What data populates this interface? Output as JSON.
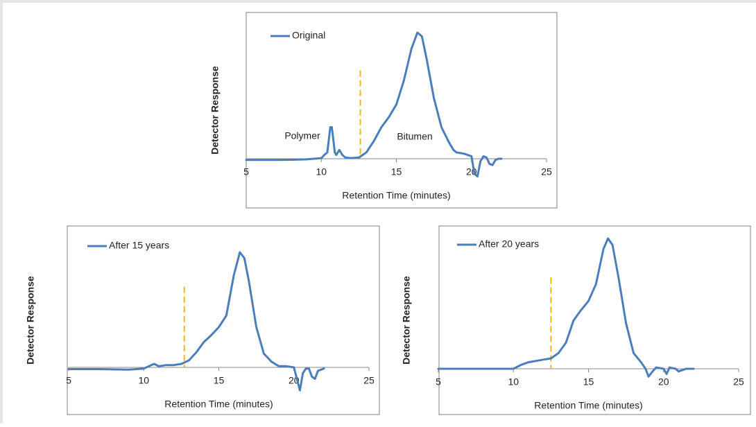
{
  "chart_data": [
    {
      "type": "line",
      "legend": "upper left",
      "xlabel": "Retention Time (minutes)",
      "ylabel": "Detector Response",
      "xlim": [
        5,
        25
      ],
      "xticks": [
        5,
        10,
        15,
        20,
        25
      ],
      "ylim": [
        -15,
        100
      ],
      "annotations": [
        "Polymer",
        "Bitumen"
      ],
      "cutoff_x": 12.6,
      "cutoff_color": "#f5b800",
      "x": [
        5,
        6,
        7,
        8,
        9,
        9.5,
        10,
        10.2,
        10.4,
        10.6,
        10.7,
        10.8,
        10.9,
        11,
        11.2,
        11.4,
        11.6,
        12,
        12.5,
        13,
        13.5,
        14,
        14.5,
        15,
        15.5,
        16,
        16.4,
        16.7,
        17,
        17.5,
        18,
        18.5,
        18.8,
        19,
        19.5,
        20,
        20.2,
        20.4,
        20.6,
        20.8,
        21,
        21.2,
        21.4,
        21.6,
        21.8,
        22
      ],
      "series": [
        {
          "name": "Original",
          "color": "#4a7ebb",
          "values": [
            -1,
            -1,
            -1,
            -0.8,
            -0.5,
            0,
            0.5,
            3,
            5,
            25,
            25,
            15,
            5,
            3,
            7,
            3,
            1,
            0.5,
            1,
            5,
            14,
            25,
            33,
            43,
            62,
            87,
            100,
            97,
            80,
            48,
            25,
            13,
            7,
            5,
            4,
            2,
            -12,
            -14,
            -2,
            2,
            1,
            -4,
            -5,
            -1,
            0,
            0
          ]
        }
      ]
    },
    {
      "type": "line",
      "legend": "upper left",
      "xlabel": "Retention Time (minutes)",
      "ylabel": "Detector Response",
      "xlim": [
        5,
        25
      ],
      "xticks": [
        5,
        10,
        15,
        20,
        25
      ],
      "ylim": [
        -25,
        100
      ],
      "cutoff_x": 12.7,
      "cutoff_color": "#f5b800",
      "x": [
        5,
        7,
        9,
        10,
        10.5,
        10.7,
        11,
        11.5,
        12,
        12.5,
        13,
        13.5,
        14,
        14.5,
        15,
        15.5,
        16,
        16.4,
        16.7,
        17,
        17.5,
        18,
        18.5,
        19,
        19.5,
        20,
        20.2,
        20.4,
        20.6,
        20.8,
        21,
        21.2,
        21.4,
        21.6,
        22
      ],
      "series": [
        {
          "name": "After 15 years",
          "color": "#4a7ebb",
          "values": [
            -1.5,
            -1.5,
            -2,
            -1,
            2,
            3,
            1,
            2,
            2,
            3,
            6,
            13,
            22,
            28,
            35,
            45,
            80,
            100,
            95,
            75,
            35,
            12,
            5,
            1,
            1,
            0,
            -10,
            -20,
            -5,
            -1,
            -1,
            -8,
            -10,
            -3,
            -1
          ]
        }
      ]
    },
    {
      "type": "line",
      "legend": "upper left",
      "xlabel": "Retention Time (minutes)",
      "ylabel": "Detector Response",
      "xlim": [
        5,
        25
      ],
      "xticks": [
        5,
        10,
        15,
        20,
        25
      ],
      "ylim": [
        -15,
        100
      ],
      "cutoff_x": 12.5,
      "cutoff_color": "#f5b800",
      "x": [
        5,
        8,
        10,
        10.5,
        11,
        11.5,
        12,
        12.5,
        13,
        13.5,
        14,
        14.5,
        15,
        15.5,
        16,
        16.3,
        16.6,
        17,
        17.5,
        18,
        18.5,
        18.8,
        19,
        19.2,
        19.5,
        20,
        20.2,
        20.4,
        20.8,
        21,
        21.5,
        22
      ],
      "series": [
        {
          "name": "After 20 years",
          "color": "#4a7ebb",
          "values": [
            0,
            0,
            0,
            3,
            5,
            6,
            7,
            8,
            12,
            20,
            37,
            45,
            52,
            65,
            92,
            100,
            95,
            70,
            35,
            12,
            5,
            0,
            -6,
            -3,
            1,
            0,
            -4,
            1,
            0,
            -2,
            0,
            0
          ]
        }
      ]
    }
  ]
}
